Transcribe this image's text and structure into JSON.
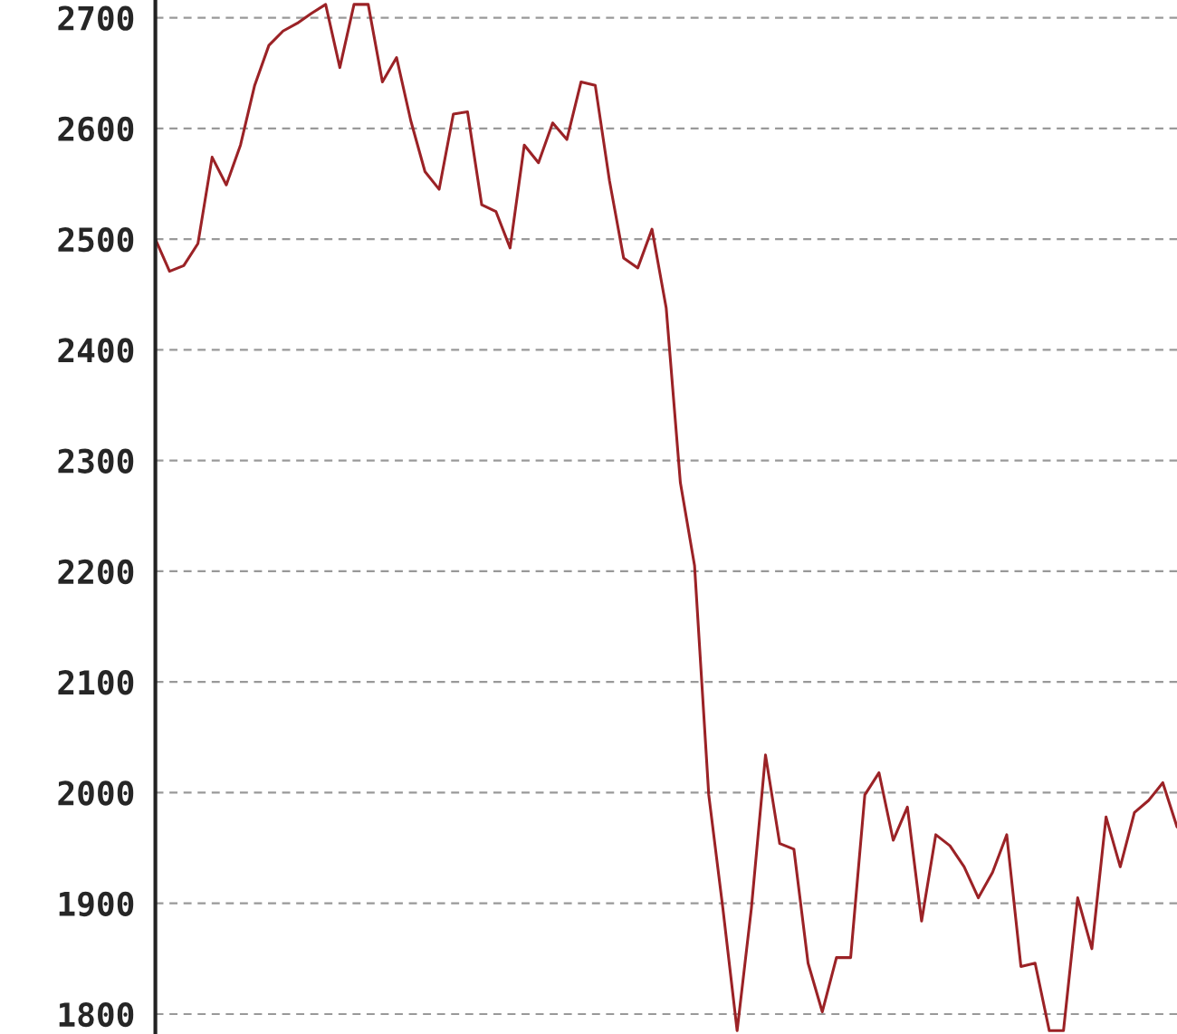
{
  "chart_data": {
    "type": "line",
    "tick_labels": "y",
    "grid": "y",
    "line_style": "solid",
    "marker": "none",
    "categories": [
      null,
      null,
      null,
      null,
      null,
      null,
      null,
      null,
      null,
      null,
      null,
      null,
      null,
      null,
      null,
      null,
      null,
      null,
      null,
      null,
      null,
      null,
      null,
      null,
      null,
      null,
      null,
      null,
      null,
      null,
      null,
      null,
      null,
      null,
      null,
      null,
      null,
      null,
      null,
      null,
      null,
      null,
      null,
      null,
      null,
      null,
      null,
      null,
      null,
      null,
      null,
      null,
      null,
      null,
      null,
      null,
      null,
      null,
      null,
      null,
      null,
      null,
      null,
      null,
      null,
      null,
      null,
      null,
      null,
      null,
      null,
      null,
      null
    ],
    "ylim": [
      1782,
      2716
    ],
    "yticks": [
      1800,
      1900,
      2000,
      2100,
      2200,
      2300,
      2400,
      2500,
      2600,
      2700
    ],
    "series": [
      {
        "color": "#9b2226",
        "values": [
          2500,
          2471,
          2476,
          2496,
          2574,
          2549,
          2585,
          2639,
          2675,
          2688,
          2695,
          2704,
          2712,
          2655,
          2712,
          2712,
          2642,
          2664,
          2607,
          2561,
          2545,
          2613,
          2615,
          2531,
          2525,
          2492,
          2585,
          2569,
          2605,
          2590,
          2642,
          2639,
          2553,
          2483,
          2474,
          2509,
          2438,
          2280,
          2205,
          1998,
          1895,
          1785,
          1895,
          2034,
          1954,
          1949,
          1846,
          1802,
          1851,
          1851,
          1998,
          2018,
          1957,
          1987,
          1884,
          1962,
          1952,
          1933,
          1905,
          1928,
          1962,
          1843,
          1846,
          1785,
          1785,
          1905,
          1859,
          1978,
          1933,
          1982,
          1993,
          2009,
          1969
        ]
      }
    ]
  }
}
